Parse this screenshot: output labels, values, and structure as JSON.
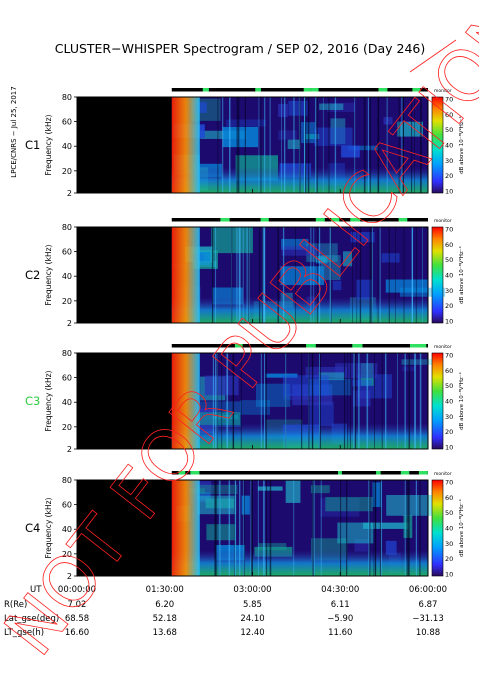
{
  "title": "CLUSTER−WHISPER Spectrogram / SEP 02, 2016 (Day 246)",
  "side_label": "LPCE/CNRS − Jul 25, 2017",
  "watermark": "NOT FOR PUBLICATION",
  "colors": {
    "background": "#000000",
    "spectrogram_base": "#1c0a6e",
    "satellite_label_default": "#000000",
    "satellite_label_c3": "#2ecc40"
  },
  "chart_data": {
    "type": "heatmap",
    "x_axis": {
      "label": "UT",
      "range_hours": [
        0,
        6
      ],
      "ticks": [
        "00:00:00",
        "01:30:00",
        "03:00:00",
        "04:30:00",
        "06:00:00"
      ],
      "tick_hours": [
        0,
        1.5,
        3,
        4.5,
        6
      ]
    },
    "y_axis": {
      "label": "Frequency (kHz)",
      "range": [
        2,
        80
      ],
      "ticks": [
        "2",
        "20",
        "40",
        "60",
        "80"
      ],
      "tick_values": [
        2,
        20,
        40,
        60,
        80
      ]
    },
    "colorbar": {
      "label": "dB above 10⁻⁸V²Hz⁻¹",
      "range": [
        10,
        70
      ],
      "ticks": [
        "10",
        "20",
        "30",
        "40",
        "50",
        "60",
        "70"
      ],
      "tick_values": [
        10,
        20,
        30,
        40,
        50,
        60,
        70
      ],
      "mode_label": "monitor"
    },
    "panels": [
      {
        "name": "C1",
        "data_start_hour": 1.62,
        "data_end_hour": 6.0,
        "strong_band_kHz": [
          2,
          80
        ]
      },
      {
        "name": "C2",
        "data_start_hour": 1.62,
        "data_end_hour": 6.0,
        "strong_band_kHz": [
          2,
          80
        ]
      },
      {
        "name": "C3",
        "data_start_hour": 1.62,
        "data_end_hour": 6.0,
        "strong_band_kHz": [
          2,
          80
        ]
      },
      {
        "name": "C4",
        "data_start_hour": 1.62,
        "data_end_hour": 6.0,
        "strong_band_kHz": [
          2,
          80
        ]
      }
    ],
    "ephemeris": {
      "rows": [
        {
          "label": "R(Re)",
          "values": [
            "7.02",
            "6.20",
            "5.85",
            "6.11",
            "6.87"
          ]
        },
        {
          "label": "Lat_gse(deg)",
          "values": [
            "68.58",
            "52.18",
            "24.10",
            "−5.90",
            "−31.13"
          ]
        },
        {
          "label": "LT_gse(h)",
          "values": [
            "16.60",
            "13.68",
            "12.40",
            "11.60",
            "10.88"
          ]
        }
      ]
    }
  }
}
